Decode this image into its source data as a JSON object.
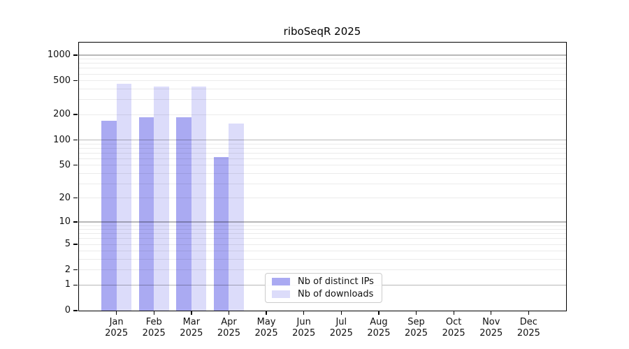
{
  "figure": {
    "title": "riboSeqR 2025"
  },
  "chart_data": {
    "type": "bar",
    "title": "riboSeqR 2025",
    "categories": [
      "Jan",
      "Feb",
      "Mar",
      "Apr",
      "May",
      "Jun",
      "Jul",
      "Aug",
      "Sep",
      "Oct",
      "Nov",
      "Dec"
    ],
    "year": "2025",
    "series": [
      {
        "name": "Nb of distinct IPs",
        "color": "#aaaaf2",
        "values": [
          168,
          186,
          186,
          63,
          null,
          null,
          null,
          null,
          null,
          null,
          null,
          null
        ]
      },
      {
        "name": "Nb of downloads",
        "color": "#dcdcfa",
        "values": [
          465,
          424,
          428,
          156,
          null,
          null,
          null,
          null,
          null,
          null,
          null,
          null
        ]
      }
    ],
    "xlabel": "",
    "ylabel": "",
    "y_ticks": [
      0,
      1,
      2,
      5,
      10,
      20,
      50,
      100,
      200,
      500,
      1000
    ],
    "y_scale": "log1p",
    "ylim": [
      0,
      1400
    ],
    "grid": "horizontal log-decade gridlines, majors at 1/10/100/1000, minors at 2-9 per decade",
    "legend_position": "inside plot, bottom center-left",
    "bar_layout": "paired bars per month, no gap within pair"
  }
}
